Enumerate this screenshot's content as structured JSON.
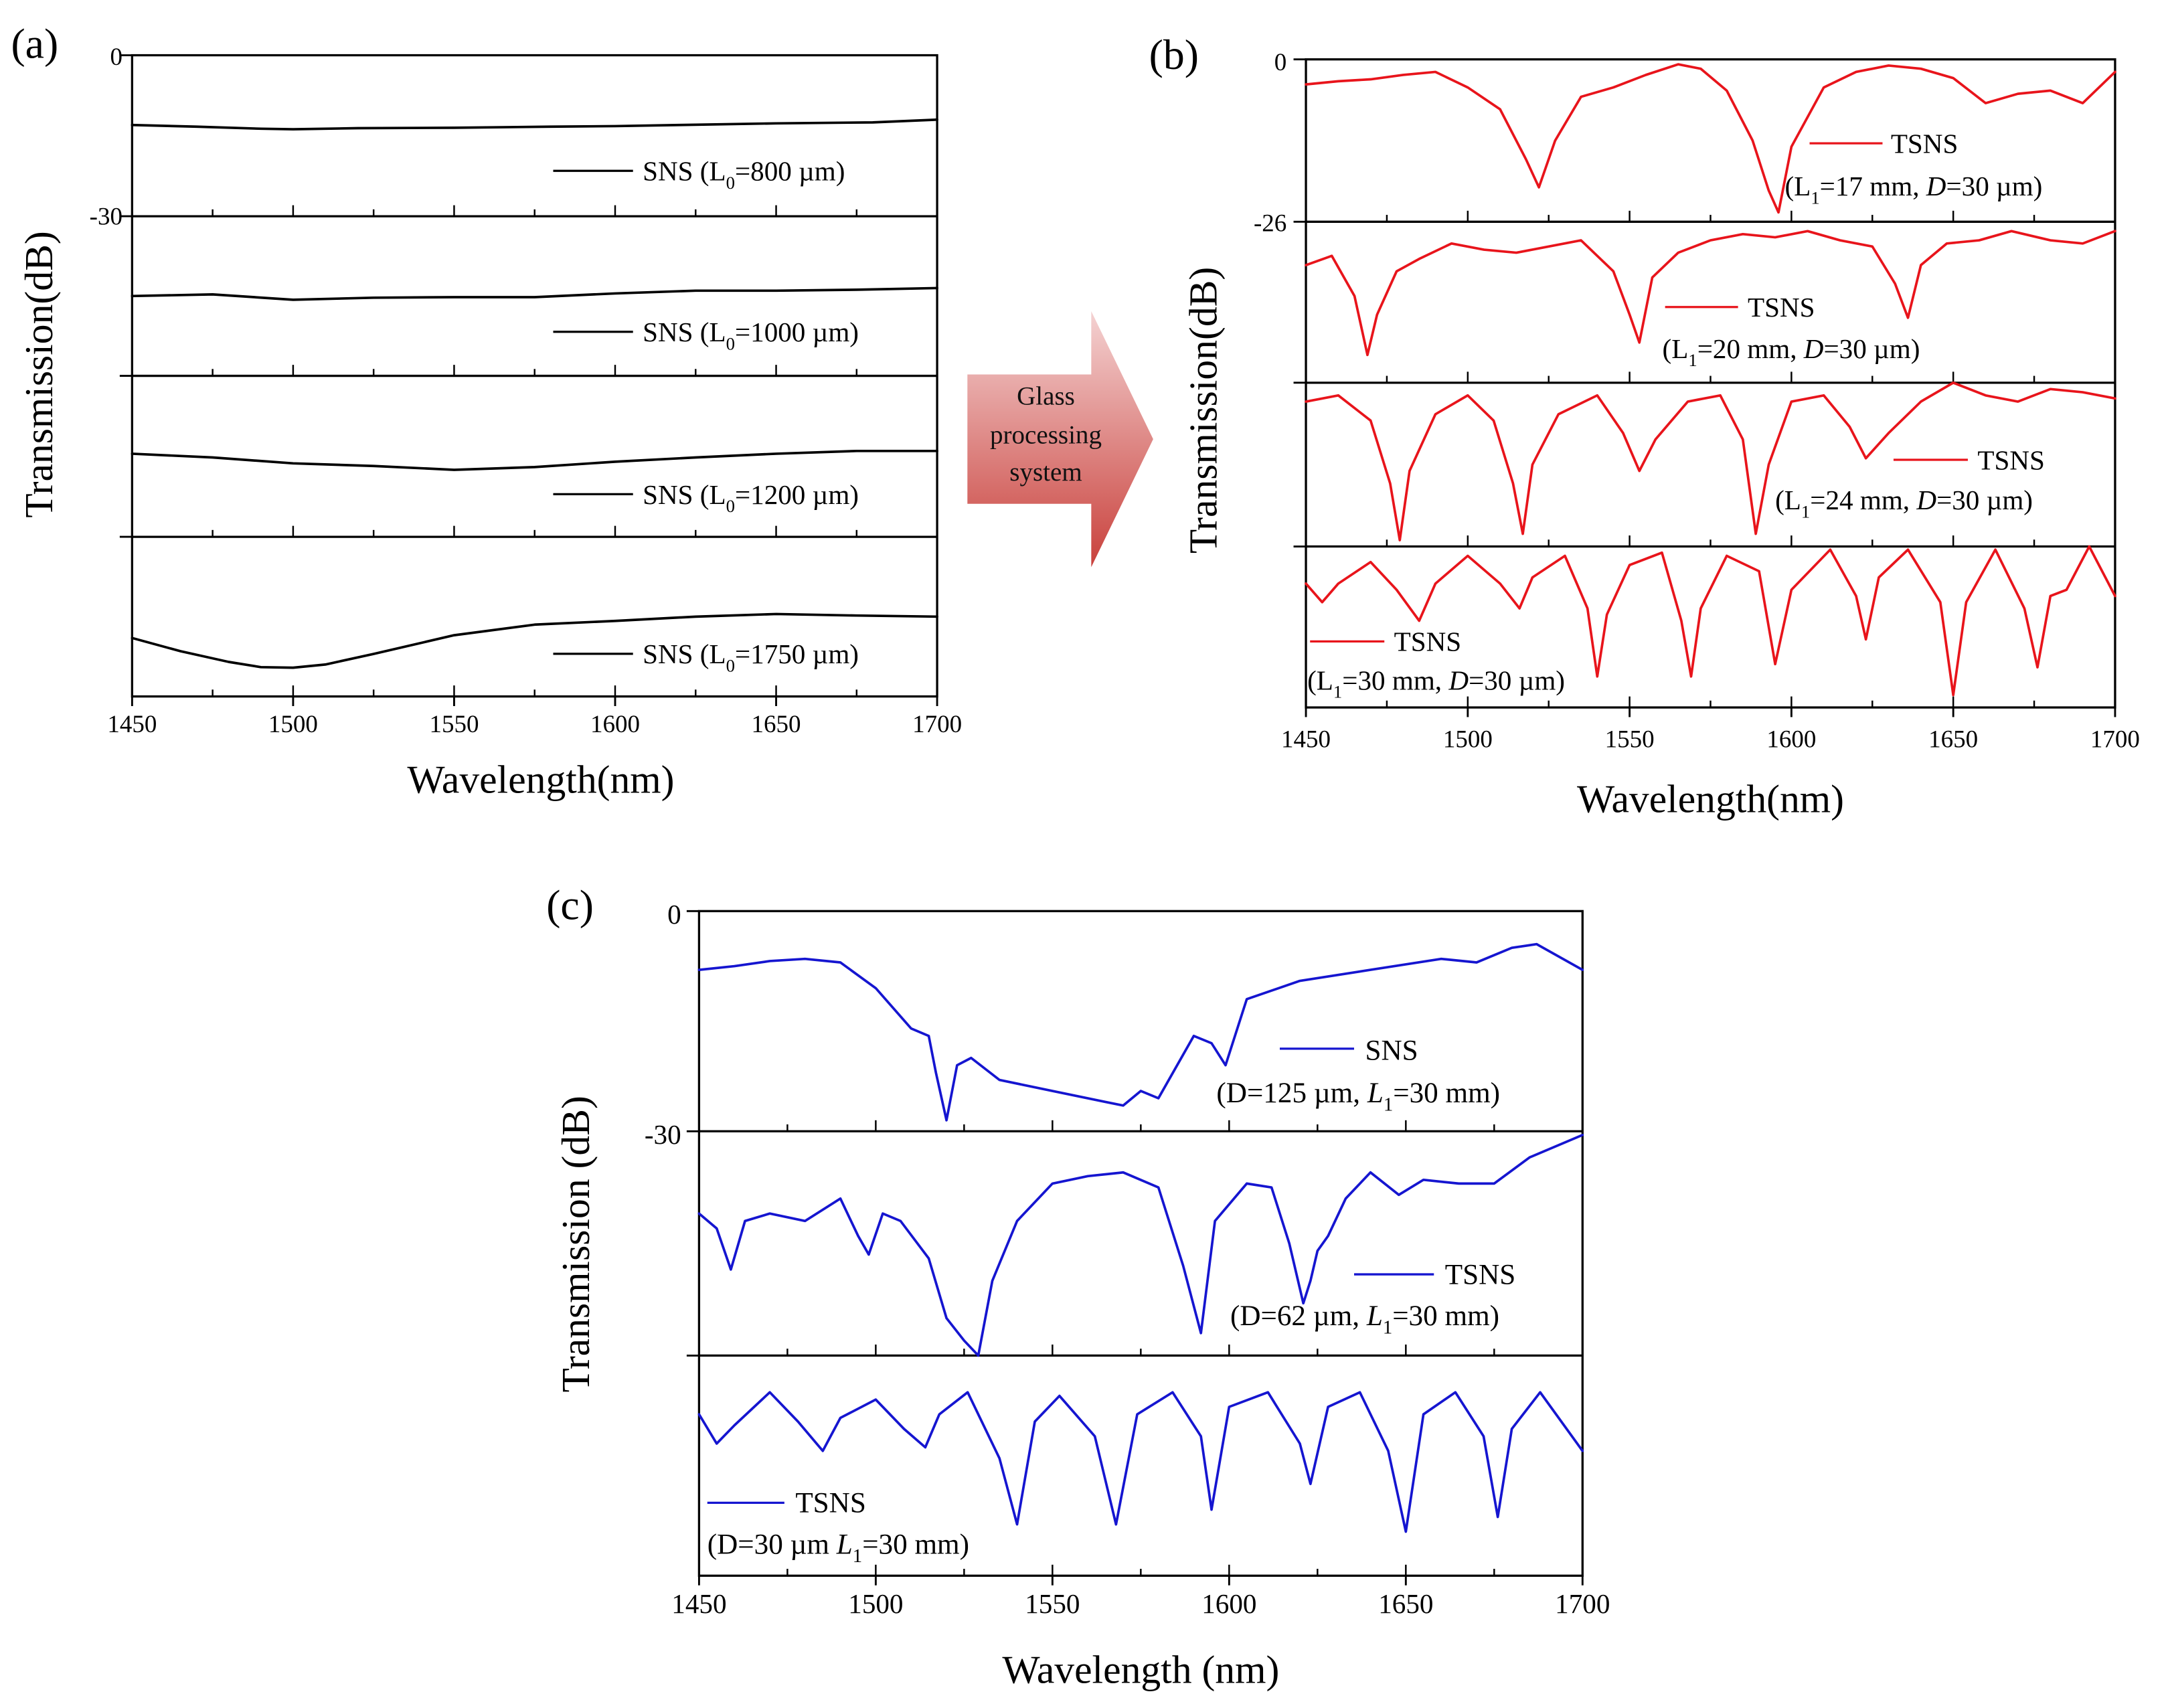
{
  "figure": {
    "arrow_label": [
      "Glass",
      "processing",
      "system"
    ]
  },
  "colors": {
    "panel_a": "#000000",
    "panel_b": "#e8141b",
    "panel_c": "#1515d0",
    "axis": "#000000",
    "arrow_top": "#f4d2d2",
    "arrow_bottom": "#c9413c"
  },
  "chart_data": [
    {
      "type": "line",
      "panel_label": "(a)",
      "xlabel": "Wavelength(nm)",
      "ylabel": "Transmission(dB)",
      "xlim": [
        1450,
        1700
      ],
      "x_ticks": [
        1450,
        1500,
        1550,
        1600,
        1650,
        1700
      ],
      "y_tick_labels": [
        "0",
        "-30"
      ],
      "subplot_ylim": [
        -30,
        0
      ],
      "series": [
        {
          "name": "SNS (L0=800 µm)",
          "legend": [
            "SNS (L",
            "0",
            "=800 µm)"
          ],
          "x": [
            1450,
            1470,
            1490,
            1500,
            1520,
            1550,
            1580,
            1600,
            1620,
            1650,
            1680,
            1700
          ],
          "y": [
            -13,
            -13.3,
            -13.7,
            -13.8,
            -13.6,
            -13.5,
            -13.3,
            -13.2,
            -13,
            -12.7,
            -12.5,
            -12
          ]
        },
        {
          "name": "SNS (L0=1000 µm)",
          "legend": [
            "SNS (L",
            "0",
            "=1000 µm)"
          ],
          "x": [
            1450,
            1475,
            1500,
            1525,
            1550,
            1575,
            1600,
            1625,
            1650,
            1675,
            1700
          ],
          "y": [
            -15,
            -14.7,
            -15.7,
            -15.3,
            -15.2,
            -15.2,
            -14.5,
            -14,
            -14,
            -13.8,
            -13.5
          ]
        },
        {
          "name": "SNS (L0=1200 µm)",
          "legend": [
            "SNS (L",
            "0",
            "=1200 µm)"
          ],
          "x": [
            1450,
            1475,
            1500,
            1525,
            1550,
            1575,
            1600,
            1625,
            1650,
            1675,
            1700
          ],
          "y": [
            -14.5,
            -15.2,
            -16.3,
            -16.8,
            -17.5,
            -17,
            -16,
            -15.2,
            -14.5,
            -14,
            -14
          ]
        },
        {
          "name": "SNS (L0=1750 µm)",
          "legend": [
            "SNS (L",
            "0",
            "=1750 µm)"
          ],
          "x": [
            1450,
            1465,
            1480,
            1490,
            1500,
            1510,
            1525,
            1550,
            1575,
            1600,
            1625,
            1650,
            1675,
            1700
          ],
          "y": [
            -19,
            -21.5,
            -23.5,
            -24.5,
            -24.6,
            -24,
            -22,
            -18.5,
            -16.5,
            -15.8,
            -15,
            -14.5,
            -14.8,
            -15
          ]
        }
      ]
    },
    {
      "type": "line",
      "panel_label": "(b)",
      "xlabel": "Wavelength(nm)",
      "ylabel": "Transmission(dB)",
      "xlim": [
        1450,
        1700
      ],
      "x_ticks": [
        1450,
        1500,
        1550,
        1600,
        1650,
        1700
      ],
      "y_tick_labels": [
        "0",
        "-26"
      ],
      "subplot_ylim": [
        -26,
        0
      ],
      "series": [
        {
          "name": "TSNS (L1=17 mm, D=30 µm)",
          "legend": [
            "TSNS",
            "(L",
            "1",
            "=17 mm, ",
            "D",
            "=30 µm)"
          ],
          "x": [
            1450,
            1460,
            1470,
            1480,
            1490,
            1500,
            1510,
            1518,
            1522,
            1527,
            1535,
            1545,
            1555,
            1565,
            1572,
            1580,
            1588,
            1593,
            1596,
            1600,
            1610,
            1620,
            1630,
            1640,
            1650,
            1660,
            1670,
            1680,
            1690,
            1700
          ],
          "y": [
            -4,
            -3.5,
            -3.2,
            -2.5,
            -2,
            -4.5,
            -8,
            -16,
            -20.5,
            -13,
            -6,
            -4.5,
            -2.5,
            -0.8,
            -1.5,
            -5,
            -13,
            -21,
            -24.5,
            -14,
            -4.5,
            -2,
            -1,
            -1.5,
            -3,
            -7,
            -5.5,
            -5,
            -7,
            -2
          ]
        },
        {
          "name": "TSNS (L1=20 mm, D=30 µm)",
          "legend": [
            "TSNS",
            "(L",
            "1",
            "=20 mm, ",
            "D",
            "=30 µm)"
          ],
          "x": [
            1450,
            1458,
            1465,
            1469,
            1472,
            1478,
            1485,
            1495,
            1505,
            1515,
            1525,
            1535,
            1545,
            1550,
            1553,
            1557,
            1565,
            1575,
            1585,
            1595,
            1605,
            1615,
            1625,
            1632,
            1636,
            1640,
            1648,
            1658,
            1668,
            1680,
            1690,
            1700
          ],
          "y": [
            -7,
            -5.5,
            -12,
            -21.5,
            -15,
            -8,
            -6,
            -3.5,
            -4.5,
            -5,
            -4,
            -3,
            -8,
            -15,
            -19.5,
            -9,
            -5,
            -3,
            -2,
            -2.5,
            -1.5,
            -3,
            -4,
            -10,
            -15.5,
            -7,
            -3.5,
            -3,
            -1.5,
            -3,
            -3.5,
            -1.5
          ]
        },
        {
          "name": "TSNS (L1=24 mm, D=30 µm)",
          "legend": [
            "TSNS",
            "(L",
            "1",
            "=24 mm, ",
            "D",
            "=30 µm)"
          ],
          "x": [
            1450,
            1460,
            1470,
            1476,
            1479,
            1482,
            1490,
            1500,
            1508,
            1514,
            1517,
            1520,
            1528,
            1540,
            1548,
            1553,
            1558,
            1568,
            1578,
            1585,
            1589,
            1593,
            1600,
            1610,
            1618,
            1623,
            1630,
            1640,
            1650,
            1660,
            1670,
            1680,
            1690,
            1700
          ],
          "y": [
            -3,
            -2,
            -6,
            -16,
            -25,
            -14,
            -5,
            -2,
            -6,
            -16,
            -24,
            -13,
            -5,
            -2,
            -8,
            -14,
            -9,
            -3,
            -2,
            -9,
            -24,
            -13,
            -3,
            -2,
            -7,
            -12,
            -8,
            -3,
            0,
            -2,
            -3,
            -1,
            -1.5,
            -2.5
          ]
        },
        {
          "name": "TSNS (L1=30 mm, D=30 µm)",
          "legend": [
            "TSNS",
            "(L",
            "1",
            "=30 mm, ",
            "D",
            "=30 µm)"
          ],
          "x": [
            1450,
            1455,
            1460,
            1470,
            1478,
            1485,
            1490,
            1500,
            1510,
            1516,
            1520,
            1530,
            1537,
            1540,
            1543,
            1550,
            1560,
            1566,
            1569,
            1572,
            1580,
            1590,
            1595,
            1600,
            1612,
            1620,
            1623,
            1627,
            1636,
            1646,
            1650,
            1654,
            1663,
            1672,
            1676,
            1680,
            1685,
            1692,
            1700
          ],
          "y": [
            -6,
            -9,
            -6,
            -2.5,
            -7,
            -12,
            -6,
            -1.5,
            -6,
            -10,
            -5,
            -1.5,
            -10,
            -21,
            -11,
            -3,
            -1,
            -12,
            -21,
            -10,
            -1.5,
            -4,
            -19,
            -7,
            -0.5,
            -8,
            -15,
            -5,
            -0.5,
            -9,
            -24,
            -9,
            -0.5,
            -10,
            -19.5,
            -8,
            -7,
            0,
            -8
          ]
        }
      ]
    },
    {
      "type": "line",
      "panel_label": "(c)",
      "xlabel": "Wavelength (nm)",
      "ylabel": "Transmission (dB)",
      "xlim": [
        1450,
        1700
      ],
      "x_ticks": [
        1450,
        1500,
        1550,
        1600,
        1650,
        1700
      ],
      "y_tick_labels": [
        "0",
        "-30"
      ],
      "subplot_ylim": [
        -30,
        0
      ],
      "series": [
        {
          "name": "SNS (D=125 µm, L1=30 mm)",
          "legend": [
            "SNS",
            "(D=125 µm, ",
            "L",
            "1",
            "=30 mm)"
          ],
          "x": [
            1450,
            1460,
            1470,
            1480,
            1490,
            1500,
            1510,
            1515,
            1517,
            1520,
            1523,
            1527,
            1535,
            1550,
            1565,
            1570,
            1575,
            1580,
            1590,
            1595,
            1599,
            1605,
            1620,
            1640,
            1660,
            1670,
            1680,
            1687,
            1700
          ],
          "y": [
            -8,
            -7.5,
            -6.8,
            -6.5,
            -7,
            -10.5,
            -16,
            -17,
            -22,
            -28.5,
            -21,
            -20,
            -23,
            -24.5,
            -26,
            -26.5,
            -24.5,
            -25.5,
            -17,
            -18,
            -21,
            -12,
            -9.5,
            -8,
            -6.5,
            -7,
            -5,
            -4.5,
            -8
          ]
        },
        {
          "name": "TSNS (D=62 µm, L1=30 mm)",
          "legend": [
            "TSNS",
            "(D=62 µm, ",
            "L",
            "1",
            "=30 mm)"
          ],
          "x": [
            1450,
            1455,
            1459,
            1463,
            1470,
            1480,
            1490,
            1495,
            1498,
            1502,
            1507,
            1515,
            1520,
            1525,
            1529,
            1533,
            1540,
            1550,
            1560,
            1570,
            1580,
            1587,
            1592,
            1596,
            1605,
            1612,
            1617,
            1621,
            1623,
            1625,
            1628,
            1633,
            1640,
            1648,
            1655,
            1665,
            1675,
            1685,
            1700
          ],
          "y": [
            -11,
            -13,
            -18.5,
            -12,
            -11,
            -12,
            -9,
            -14,
            -16.5,
            -11,
            -12,
            -17,
            -25,
            -28,
            -30,
            -20,
            -12,
            -7,
            -6,
            -5.5,
            -7.5,
            -18,
            -27,
            -12,
            -7,
            -7.5,
            -15,
            -23,
            -20,
            -16,
            -14,
            -9,
            -5.5,
            -8.5,
            -6.5,
            -7,
            -7,
            -3.5,
            -0.5
          ]
        },
        {
          "name": "TSNS (D=30 µm L1=30 mm)",
          "legend": [
            "TSNS",
            "(D=30 µm ",
            "L",
            "1",
            "=30 mm)"
          ],
          "x": [
            1450,
            1455,
            1460,
            1470,
            1478,
            1485,
            1490,
            1500,
            1508,
            1514,
            1518,
            1526,
            1535,
            1540,
            1545,
            1552,
            1562,
            1568,
            1574,
            1584,
            1592,
            1595,
            1600,
            1611,
            1620,
            1623,
            1628,
            1637,
            1645,
            1650,
            1655,
            1664,
            1672,
            1676,
            1680,
            1688,
            1700
          ],
          "y": [
            -8,
            -12,
            -9.5,
            -5,
            -9,
            -13,
            -8.5,
            -6,
            -10,
            -12.5,
            -8,
            -5,
            -14,
            -23,
            -9,
            -5.5,
            -11,
            -23,
            -8,
            -5,
            -11,
            -21,
            -7,
            -5,
            -12,
            -17.5,
            -7,
            -5,
            -13,
            -24,
            -8,
            -5,
            -11,
            -22,
            -10,
            -5,
            -13
          ]
        }
      ]
    }
  ]
}
